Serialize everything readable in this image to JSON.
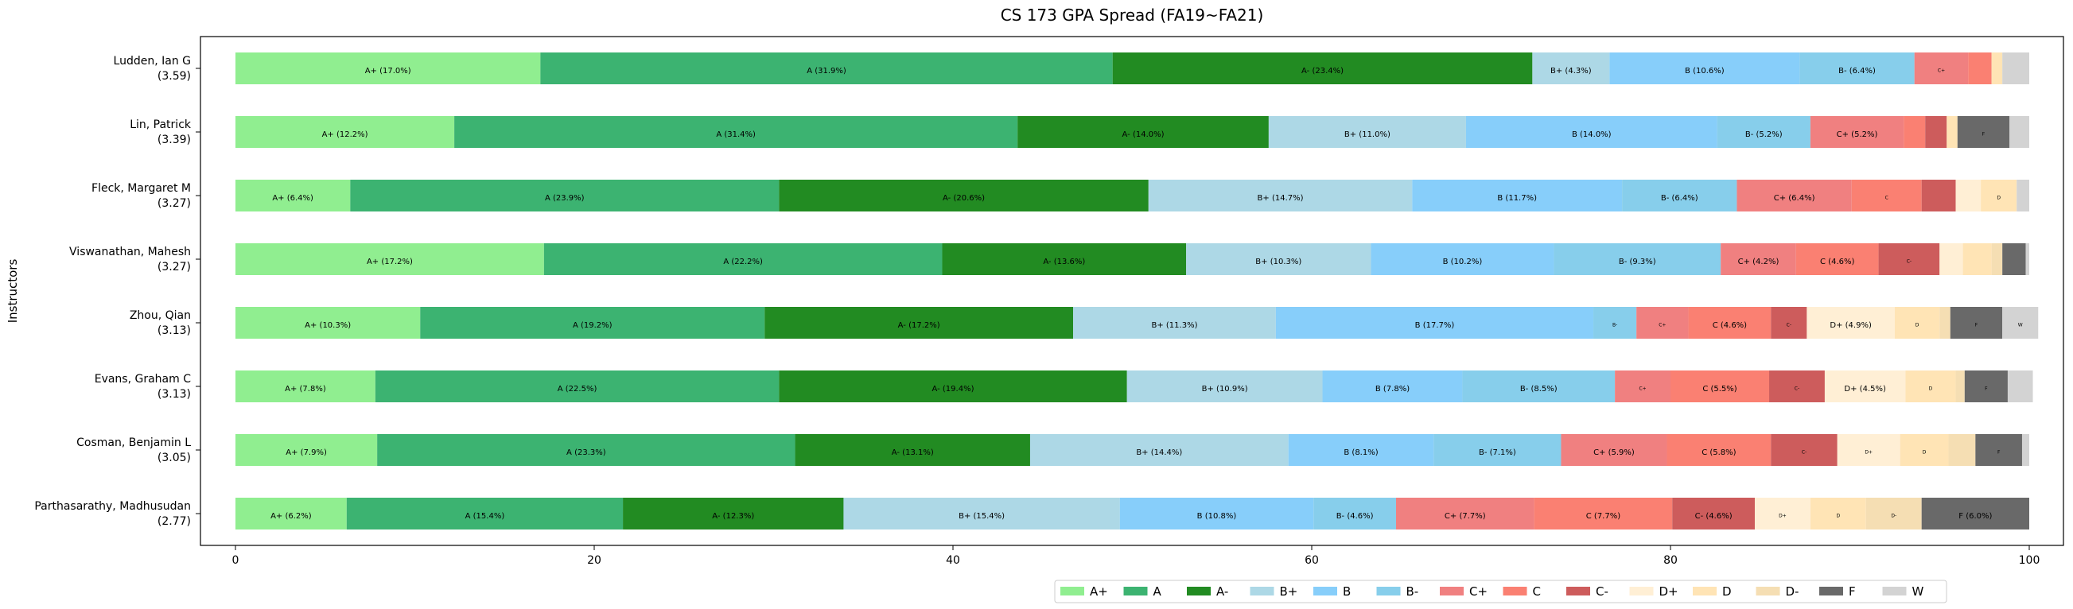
{
  "chart_data": {
    "type": "bar",
    "orientation": "horizontal",
    "stacked": true,
    "title": "CS 173 GPA Spread (FA19~FA21)",
    "xlabel": "",
    "ylabel": "Instructors",
    "xlim": [
      0,
      100
    ],
    "xticks": [
      "0",
      "20",
      "40",
      "60",
      "80",
      "100"
    ],
    "grid": false,
    "legend_position": "bottom-right",
    "grades": [
      "A+",
      "A",
      "A-",
      "B+",
      "B",
      "B-",
      "C+",
      "C",
      "C-",
      "D+",
      "D",
      "D-",
      "F",
      "W"
    ],
    "colors": {
      "A+": "#90ee90",
      "A": "#3cb371",
      "A-": "#228b22",
      "B+": "#add8e6",
      "B": "#87cefa",
      "B-": "#87ceeb",
      "C+": "#f08080",
      "C": "#fa8072",
      "C-": "#cd5c5c",
      "D+": "#ffefd5",
      "D": "#ffe4b5",
      "D-": "#f5deb3",
      "F": "#696969",
      "W": "#d3d3d3"
    },
    "instructors": [
      {
        "name": "Ludden, Ian G",
        "gpa": "(3.59)",
        "values": [
          17.0,
          31.9,
          23.4,
          4.3,
          10.6,
          6.4,
          3.0,
          1.3,
          0.0,
          0.0,
          0.6,
          0.0,
          0.0,
          1.5
        ]
      },
      {
        "name": "Lin, Patrick",
        "gpa": "(3.39)",
        "values": [
          12.2,
          31.4,
          14.0,
          11.0,
          14.0,
          5.2,
          5.2,
          1.2,
          1.2,
          0.0,
          0.6,
          0.0,
          2.9,
          1.1
        ]
      },
      {
        "name": "Fleck, Margaret M",
        "gpa": "(3.27)",
        "values": [
          6.4,
          23.9,
          20.6,
          14.7,
          11.7,
          6.4,
          6.4,
          3.9,
          1.9,
          1.4,
          2.0,
          0.0,
          0.0,
          0.7
        ]
      },
      {
        "name": "Viswanathan, Mahesh",
        "gpa": "(3.27)",
        "values": [
          17.2,
          22.2,
          13.6,
          10.3,
          10.2,
          9.3,
          4.2,
          4.6,
          3.4,
          1.3,
          1.6,
          0.6,
          1.3,
          0.2
        ]
      },
      {
        "name": "Zhou, Qian",
        "gpa": "(3.13)",
        "values": [
          10.3,
          19.2,
          17.2,
          11.3,
          17.7,
          2.4,
          2.9,
          4.6,
          2.0,
          4.9,
          2.5,
          0.6,
          2.9,
          2.0
        ]
      },
      {
        "name": "Evans, Graham C",
        "gpa": "(3.13)",
        "values": [
          7.8,
          22.5,
          19.4,
          10.9,
          7.8,
          8.5,
          3.1,
          5.5,
          3.1,
          4.5,
          2.8,
          0.5,
          2.4,
          1.4
        ]
      },
      {
        "name": "Cosman, Benjamin L",
        "gpa": "(3.05)",
        "values": [
          7.9,
          23.3,
          13.1,
          14.4,
          8.1,
          7.1,
          5.9,
          5.8,
          3.7,
          3.5,
          2.7,
          1.5,
          2.6,
          0.4
        ]
      },
      {
        "name": "Parthasarathy, Madhusudan",
        "gpa": "(2.77)",
        "values": [
          6.2,
          15.4,
          12.3,
          15.4,
          10.8,
          4.6,
          7.7,
          7.7,
          4.6,
          3.1,
          3.1,
          3.1,
          6.0,
          0.0
        ]
      }
    ]
  }
}
